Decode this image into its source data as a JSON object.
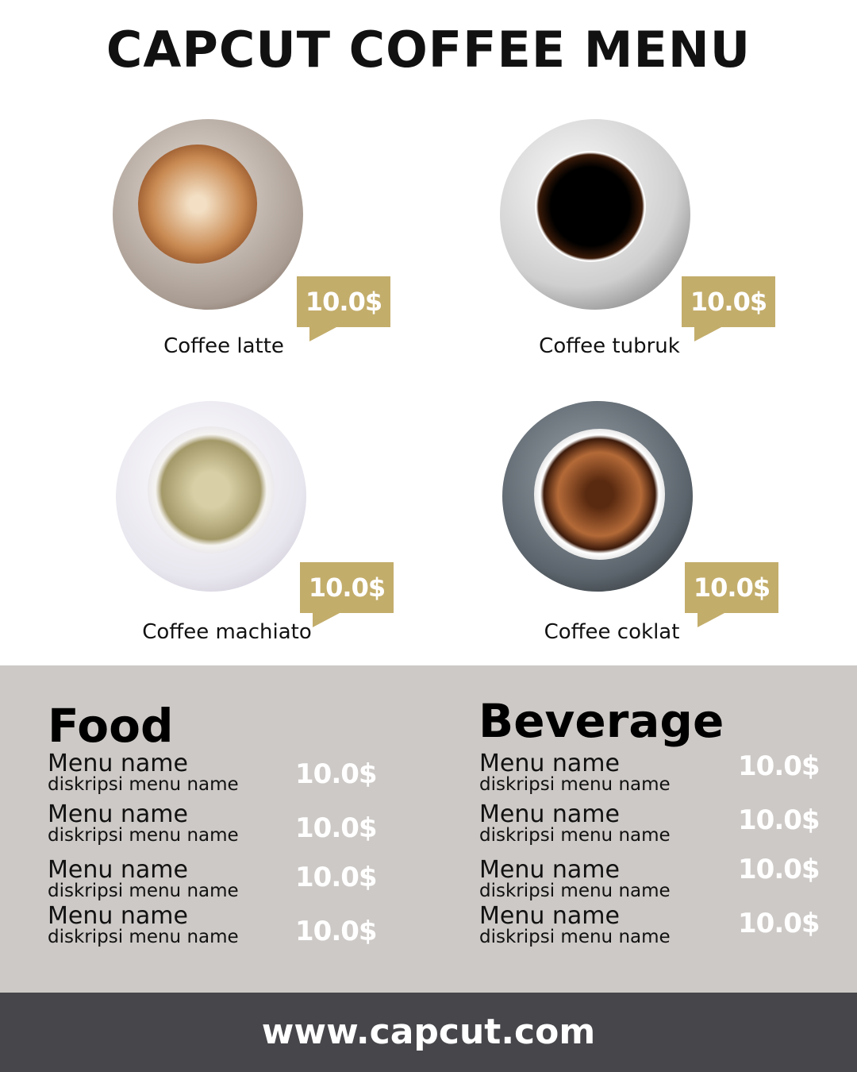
{
  "title": "CAPCUT COFFEE MENU",
  "colors": {
    "accent": "#c3ad6b",
    "panel": "#cdc9c6",
    "footer": "#47464b"
  },
  "coffees": [
    {
      "name": "Coffee latte",
      "price": "10.0$"
    },
    {
      "name": "Coffee tubruk",
      "price": "10.0$"
    },
    {
      "name": "Coffee machiato",
      "price": "10.0$"
    },
    {
      "name": "Coffee coklat",
      "price": "10.0$"
    }
  ],
  "food": {
    "heading": "Food",
    "items": [
      {
        "name": "Menu name",
        "desc": "diskripsi menu name",
        "price": "10.0$"
      },
      {
        "name": "Menu name",
        "desc": "diskripsi menu name",
        "price": "10.0$"
      },
      {
        "name": "Menu name",
        "desc": "diskripsi menu name",
        "price": "10.0$"
      },
      {
        "name": "Menu name",
        "desc": "diskripsi menu name",
        "price": "10.0$"
      }
    ]
  },
  "beverage": {
    "heading": "Beverage",
    "items": [
      {
        "name": "Menu name",
        "desc": "diskripsi menu name",
        "price": "10.0$"
      },
      {
        "name": "Menu name",
        "desc": "diskripsi menu name",
        "price": "10.0$"
      },
      {
        "name": "Menu name",
        "desc": "diskripsi menu name",
        "price": "10.0$"
      },
      {
        "name": "Menu name",
        "desc": "diskripsi menu name",
        "price": "10.0$"
      }
    ]
  },
  "footer": "www.capcut.com"
}
